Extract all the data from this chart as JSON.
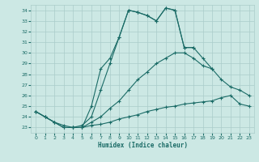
{
  "xlabel": "Humidex (Indice chaleur)",
  "background_color": "#cce8e4",
  "grid_color": "#aaccca",
  "line_color": "#1a6b66",
  "xlim": [
    -0.5,
    23.5
  ],
  "ylim": [
    22.5,
    34.5
  ],
  "yticks": [
    23,
    24,
    25,
    26,
    27,
    28,
    29,
    30,
    31,
    32,
    33,
    34
  ],
  "xticks": [
    0,
    1,
    2,
    3,
    4,
    5,
    6,
    7,
    8,
    9,
    10,
    11,
    12,
    13,
    14,
    15,
    16,
    17,
    18,
    19,
    20,
    21,
    22,
    23
  ],
  "lines": [
    {
      "x": [
        0,
        1,
        2,
        3,
        4,
        5,
        6,
        7,
        8,
        9,
        10,
        11,
        12,
        13,
        14,
        15,
        16,
        17,
        18,
        19,
        20,
        21,
        22,
        23
      ],
      "y": [
        24.5,
        24.0,
        23.5,
        23.0,
        23.0,
        23.0,
        25.0,
        28.5,
        29.5,
        31.5,
        34.0,
        33.8,
        33.5,
        33.0,
        34.2,
        34.0,
        30.5,
        30.5,
        null,
        null,
        null,
        null,
        null,
        null
      ]
    },
    {
      "x": [
        4,
        5,
        6,
        7,
        8,
        9,
        10,
        11,
        12,
        13,
        14,
        15,
        16,
        17,
        18,
        19,
        20,
        21,
        22,
        23
      ],
      "y": [
        23.0,
        23.2,
        24.0,
        26.5,
        29.0,
        31.5,
        34.0,
        33.8,
        33.5,
        33.0,
        34.2,
        34.0,
        30.5,
        30.5,
        29.5,
        28.5,
        null,
        null,
        null,
        null
      ]
    },
    {
      "x": [
        0,
        1,
        2,
        3,
        4,
        5,
        6,
        7,
        8,
        9,
        10,
        11,
        12,
        13,
        14,
        15,
        16,
        17,
        18,
        19,
        20,
        21,
        22,
        23
      ],
      "y": [
        24.5,
        24.0,
        23.5,
        23.2,
        23.0,
        23.0,
        23.5,
        24.0,
        24.8,
        25.5,
        26.5,
        27.5,
        28.2,
        29.0,
        29.5,
        30.0,
        30.0,
        29.5,
        28.8,
        28.5,
        27.5,
        26.8,
        26.5,
        26.0
      ]
    },
    {
      "x": [
        0,
        1,
        2,
        3,
        4,
        5,
        6,
        7,
        8,
        9,
        10,
        11,
        12,
        13,
        14,
        15,
        16,
        17,
        18,
        19,
        20,
        21,
        22,
        23
      ],
      "y": [
        24.5,
        24.0,
        23.5,
        23.0,
        23.0,
        23.0,
        23.2,
        23.3,
        23.5,
        23.8,
        24.0,
        24.2,
        24.5,
        24.7,
        24.9,
        25.0,
        25.2,
        25.3,
        25.4,
        25.5,
        25.8,
        26.0,
        25.2,
        25.0
      ]
    }
  ]
}
